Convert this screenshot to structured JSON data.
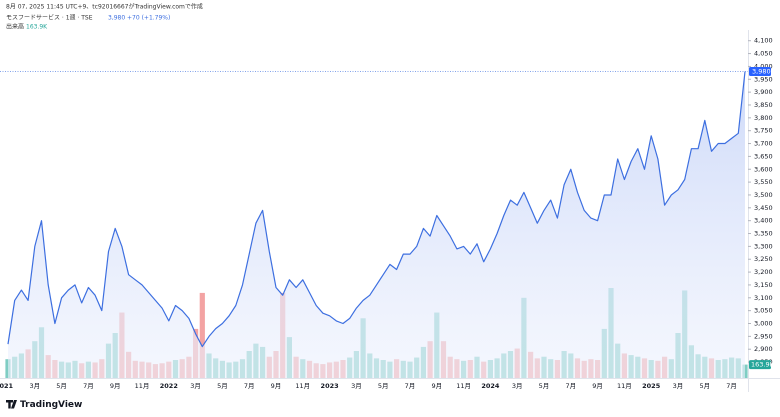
{
  "header": {
    "created": "8月 07, 2025 11:45 UTC+9、tc92016667がTradingView.comで作成",
    "symbol": "モスフードサービス · 1週 · TSE",
    "price": "3,980",
    "change": "+70 (+1.79%)",
    "volume_title": "出来高",
    "volume_value": "163.9K"
  },
  "chart_data": {
    "type": "line",
    "categories": [
      "2021",
      null,
      null,
      null,
      "3月",
      null,
      null,
      null,
      "5月",
      null,
      null,
      null,
      "7月",
      null,
      null,
      null,
      "9月",
      null,
      null,
      null,
      "11月",
      null,
      null,
      null,
      "2022",
      null,
      null,
      null,
      "3月",
      null,
      null,
      null,
      "5月",
      null,
      null,
      null,
      "7月",
      null,
      null,
      null,
      "9月",
      null,
      null,
      null,
      "11月",
      null,
      null,
      null,
      "2023",
      null,
      null,
      null,
      "3月",
      null,
      null,
      null,
      "5月",
      null,
      null,
      null,
      "7月",
      null,
      null,
      null,
      "9月",
      null,
      null,
      null,
      "11月",
      null,
      null,
      null,
      "2024",
      null,
      null,
      null,
      "3月",
      null,
      null,
      null,
      "5月",
      null,
      null,
      null,
      "7月",
      null,
      null,
      null,
      "9月",
      null,
      null,
      null,
      "11月",
      null,
      null,
      null,
      "2025",
      null,
      null,
      null,
      "3月",
      null,
      null,
      null,
      "5月",
      null,
      null,
      null,
      "7月",
      null,
      null
    ],
    "series": [
      {
        "color": "#3d6fe0",
        "values": [
          2920,
          3090,
          3130,
          3090,
          3300,
          3400,
          3150,
          3000,
          3100,
          3130,
          3150,
          3080,
          3140,
          3110,
          3050,
          3280,
          3370,
          3300,
          3190,
          3170,
          3150,
          3120,
          3090,
          3060,
          3010,
          3070,
          3050,
          3020,
          2960,
          2910,
          2950,
          2980,
          3000,
          3030,
          3070,
          3150,
          3270,
          3390,
          3440,
          3280,
          3140,
          3110,
          3170,
          3140,
          3170,
          3120,
          3070,
          3040,
          3030,
          3010,
          3000,
          3020,
          3060,
          3090,
          3110,
          3150,
          3190,
          3230,
          3210,
          3270,
          3270,
          3300,
          3370,
          3340,
          3420,
          3380,
          3340,
          3290,
          3300,
          3270,
          3310,
          3240,
          3290,
          3350,
          3420,
          3480,
          3460,
          3510,
          3450,
          3390,
          3440,
          3480,
          3410,
          3540,
          3600,
          3510,
          3440,
          3410,
          3400,
          3500,
          3500,
          3640,
          3560,
          3630,
          3680,
          3600,
          3730,
          3640,
          3460,
          3500,
          3520,
          3560,
          3680,
          3680,
          3790,
          3670,
          3700,
          3700,
          3720,
          3740,
          3980
        ]
      },
      {
        "type": "bar",
        "axis": "y2",
        "up_color": "#7fcdc3",
        "down_color": "#f3a3a3",
        "values": [
          230,
          260,
          300,
          350,
          450,
          620,
          280,
          220,
          200,
          190,
          210,
          180,
          200,
          190,
          230,
          420,
          550,
          800,
          320,
          210,
          200,
          190,
          170,
          180,
          200,
          220,
          230,
          260,
          600,
          1040,
          300,
          240,
          210,
          190,
          200,
          230,
          330,
          420,
          380,
          260,
          330,
          1040,
          500,
          260,
          230,
          210,
          180,
          170,
          190,
          200,
          220,
          250,
          330,
          730,
          300,
          240,
          220,
          200,
          230,
          210,
          200,
          250,
          380,
          450,
          800,
          450,
          260,
          230,
          210,
          220,
          260,
          200,
          220,
          240,
          300,
          330,
          360,
          980,
          320,
          240,
          260,
          230,
          220,
          330,
          300,
          240,
          210,
          230,
          220,
          600,
          1100,
          420,
          300,
          280,
          260,
          240,
          220,
          210,
          260,
          230,
          550,
          1070,
          400,
          290,
          260,
          240,
          220,
          230,
          250,
          240,
          163.9
        ]
      }
    ],
    "ylim": [
      2788,
      4130
    ],
    "yticks": [
      {
        "value": 2850,
        "label": "2,850"
      },
      {
        "value": 2900,
        "label": "2,900"
      },
      {
        "value": 2950,
        "label": "2,950"
      },
      {
        "value": 3000,
        "label": "3,000"
      },
      {
        "value": 3050,
        "label": "3,050"
      },
      {
        "value": 3100,
        "label": "3,100"
      },
      {
        "value": 3150,
        "label": "3,150"
      },
      {
        "value": 3200,
        "label": "3,200"
      },
      {
        "value": 3250,
        "label": "3,250"
      },
      {
        "value": 3300,
        "label": "3,300"
      },
      {
        "value": 3350,
        "label": "3,350"
      },
      {
        "value": 3400,
        "label": "3,400"
      },
      {
        "value": 3450,
        "label": "3,450"
      },
      {
        "value": 3500,
        "label": "3,500"
      },
      {
        "value": 3550,
        "label": "3,550"
      },
      {
        "value": 3600,
        "label": "3,600"
      },
      {
        "value": 3650,
        "label": "3,650"
      },
      {
        "value": 3700,
        "label": "3,700"
      },
      {
        "value": 3750,
        "label": "3,750"
      },
      {
        "value": 3800,
        "label": "3,800"
      },
      {
        "value": 3850,
        "label": "3,850"
      },
      {
        "value": 3900,
        "label": "3,900"
      },
      {
        "value": 3950,
        "label": "3,950"
      },
      {
        "value": 4000,
        "label": "4,000"
      },
      {
        "value": 4050,
        "label": "4,050"
      },
      {
        "value": 4100,
        "label": "4,100"
      }
    ],
    "y2lim": [
      0,
      1100
    ],
    "area_color": "#dfe6fb"
  },
  "footer": {
    "brand": "TradingView"
  }
}
